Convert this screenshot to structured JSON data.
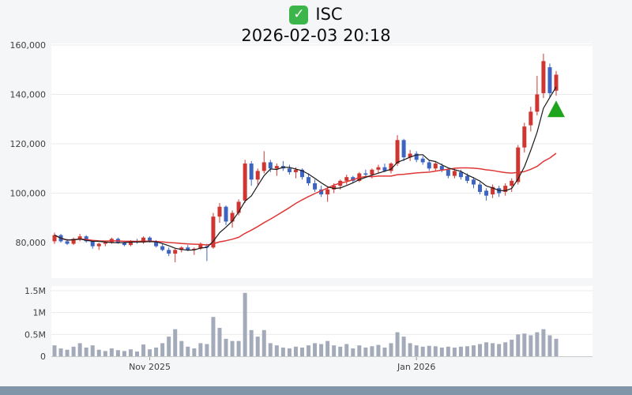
{
  "header": {
    "check_glyph": "✓",
    "symbol": "ISC",
    "datetime": "2026-02-03 20:18"
  },
  "colors": {
    "page_bg": "#f5f6f7",
    "panel_bg": "#ffffff",
    "grid": "#ebebeb",
    "axis_text": "#3f3f3f",
    "up_candle": "#cf3631",
    "down_candle": "#3d64c1",
    "volume_bar": "#a3aaba",
    "ma_short": "#1a1a1a",
    "ma_long": "#e03636",
    "marker_green": "#1da61d",
    "check_icon_bg": "#3cb54a",
    "bottom_strip": "#8095a8"
  },
  "chart_data": {
    "type": "candlestick",
    "title": "ISC",
    "subtitle": "2026-02-03 20:18",
    "legend_position": "none",
    "grid": true,
    "price_axis": {
      "ticks": [
        80000,
        100000,
        120000,
        140000,
        160000
      ],
      "tick_labels": [
        "80,000",
        "100,000",
        "120,000",
        "140,000",
        "160,000"
      ],
      "range": [
        66000,
        160640
      ]
    },
    "volume_axis": {
      "ticks": [
        0,
        500000,
        1000000,
        1500000
      ],
      "tick_labels": [
        "0",
        "0.5M",
        "1M",
        "1.5M"
      ],
      "range": [
        0,
        1500000
      ]
    },
    "x_axis": {
      "labels": [
        {
          "date": "2025-11-03",
          "label": "Nov 2025"
        },
        {
          "date": "2026-01-02",
          "label": "Jan 2026"
        }
      ]
    },
    "overlays": {
      "ma_short_window": 5,
      "ma_long_window": 20
    },
    "marker": {
      "shape": "triangle-up",
      "color": "#1da61d",
      "date": "2026-02-03",
      "price": 134000
    },
    "columns": [
      "date",
      "open",
      "high",
      "low",
      "close",
      "volume"
    ],
    "candles": [
      [
        "2025-10-13",
        80500,
        84000,
        79500,
        83000,
        250000
      ],
      [
        "2025-10-14",
        83000,
        83500,
        80000,
        80500,
        180000
      ],
      [
        "2025-10-15",
        80500,
        81500,
        79000,
        79500,
        150000
      ],
      [
        "2025-10-16",
        79500,
        82000,
        79000,
        81500,
        220000
      ],
      [
        "2025-10-17",
        81500,
        83500,
        80500,
        82500,
        300000
      ],
      [
        "2025-10-20",
        82500,
        83000,
        80000,
        80500,
        200000
      ],
      [
        "2025-10-21",
        80500,
        81000,
        77500,
        78500,
        250000
      ],
      [
        "2025-10-22",
        78500,
        80000,
        77000,
        79500,
        150000
      ],
      [
        "2025-10-23",
        79500,
        80500,
        78500,
        80000,
        120000
      ],
      [
        "2025-10-24",
        80000,
        82000,
        79500,
        81500,
        180000
      ],
      [
        "2025-10-27",
        81500,
        82000,
        79500,
        80000,
        140000
      ],
      [
        "2025-10-28",
        80000,
        80500,
        78500,
        79000,
        120000
      ],
      [
        "2025-10-29",
        79000,
        81000,
        78500,
        80500,
        160000
      ],
      [
        "2025-10-30",
        80500,
        81500,
        79500,
        80000,
        110000
      ],
      [
        "2025-10-31",
        80000,
        82500,
        79500,
        82000,
        270000
      ],
      [
        "2025-11-03",
        82000,
        82500,
        80000,
        80500,
        160000
      ],
      [
        "2025-11-04",
        80500,
        81000,
        78000,
        78500,
        200000
      ],
      [
        "2025-11-05",
        78500,
        79500,
        76500,
        77000,
        300000
      ],
      [
        "2025-11-06",
        77000,
        78000,
        74500,
        75500,
        450000
      ],
      [
        "2025-11-07",
        75500,
        77500,
        72000,
        77000,
        620000
      ],
      [
        "2025-11-10",
        77000,
        78500,
        76000,
        78000,
        350000
      ],
      [
        "2025-11-11",
        78000,
        79000,
        76500,
        77000,
        220000
      ],
      [
        "2025-11-12",
        77000,
        78000,
        75000,
        77500,
        180000
      ],
      [
        "2025-11-13",
        77500,
        80000,
        77000,
        79500,
        300000
      ],
      [
        "2025-11-14",
        78500,
        79500,
        72500,
        78000,
        280000
      ],
      [
        "2025-11-17",
        78000,
        92000,
        77500,
        90500,
        900000
      ],
      [
        "2025-11-18",
        90500,
        96000,
        88000,
        94500,
        650000
      ],
      [
        "2025-11-19",
        94500,
        95000,
        87000,
        88500,
        400000
      ],
      [
        "2025-11-20",
        88500,
        93000,
        86000,
        92000,
        350000
      ],
      [
        "2025-11-21",
        92000,
        97500,
        91000,
        96500,
        350000
      ],
      [
        "2025-11-24",
        97000,
        113500,
        96000,
        112000,
        1450000
      ],
      [
        "2025-11-25",
        112000,
        113000,
        103000,
        105500,
        600000
      ],
      [
        "2025-11-26",
        105500,
        110000,
        103500,
        109000,
        450000
      ],
      [
        "2025-11-27",
        109000,
        117000,
        108000,
        112500,
        600000
      ],
      [
        "2025-11-28",
        112500,
        113500,
        108500,
        110000,
        300000
      ],
      [
        "2025-12-01",
        110000,
        112000,
        107000,
        111000,
        250000
      ],
      [
        "2025-12-02",
        111000,
        113000,
        109000,
        110000,
        200000
      ],
      [
        "2025-12-03",
        110000,
        111500,
        107500,
        108500,
        180000
      ],
      [
        "2025-12-04",
        108500,
        110500,
        106000,
        109500,
        220000
      ],
      [
        "2025-12-05",
        109500,
        110000,
        105500,
        106500,
        200000
      ],
      [
        "2025-12-08",
        106500,
        108000,
        103000,
        104000,
        250000
      ],
      [
        "2025-12-09",
        104000,
        105500,
        100500,
        101500,
        300000
      ],
      [
        "2025-12-10",
        101500,
        103000,
        98500,
        99500,
        280000
      ],
      [
        "2025-12-11",
        99500,
        102500,
        96500,
        101500,
        350000
      ],
      [
        "2025-12-12",
        101500,
        104000,
        100000,
        103000,
        250000
      ],
      [
        "2025-12-15",
        103000,
        105500,
        101500,
        105000,
        220000
      ],
      [
        "2025-12-16",
        105000,
        107500,
        103500,
        106500,
        280000
      ],
      [
        "2025-12-17",
        106500,
        107000,
        104000,
        105000,
        180000
      ],
      [
        "2025-12-18",
        105000,
        108500,
        104500,
        108000,
        250000
      ],
      [
        "2025-12-19",
        108000,
        109500,
        106500,
        107500,
        200000
      ],
      [
        "2025-12-22",
        107500,
        110000,
        106000,
        109500,
        230000
      ],
      [
        "2025-12-23",
        109500,
        111500,
        108000,
        110500,
        260000
      ],
      [
        "2025-12-24",
        110500,
        112000,
        108500,
        109000,
        200000
      ],
      [
        "2025-12-26",
        109000,
        112500,
        108000,
        112000,
        300000
      ],
      [
        "2025-12-29",
        112000,
        123500,
        111000,
        121500,
        550000
      ],
      [
        "2025-12-30",
        121500,
        122000,
        113000,
        114500,
        450000
      ],
      [
        "2025-12-31",
        114500,
        117500,
        113000,
        116000,
        300000
      ],
      [
        "2026-01-02",
        116000,
        117000,
        112500,
        113500,
        250000
      ],
      [
        "2026-01-05",
        114000,
        115000,
        111500,
        112500,
        220000
      ],
      [
        "2026-01-06",
        112500,
        113500,
        109000,
        110000,
        240000
      ],
      [
        "2026-01-07",
        110000,
        113000,
        109000,
        112000,
        230000
      ],
      [
        "2026-01-08",
        111000,
        112000,
        108500,
        109500,
        200000
      ],
      [
        "2026-01-09",
        109500,
        110000,
        106000,
        107000,
        220000
      ],
      [
        "2026-01-12",
        107000,
        110000,
        106000,
        109000,
        200000
      ],
      [
        "2026-01-13",
        108500,
        109500,
        105500,
        106500,
        220000
      ],
      [
        "2026-01-14",
        107000,
        108000,
        104000,
        105000,
        230000
      ],
      [
        "2026-01-15",
        105500,
        106500,
        102000,
        103500,
        250000
      ],
      [
        "2026-01-16",
        103500,
        104500,
        99500,
        100500,
        280000
      ],
      [
        "2026-01-19",
        101000,
        102000,
        97000,
        99000,
        320000
      ],
      [
        "2026-01-20",
        99500,
        103500,
        98000,
        102500,
        300000
      ],
      [
        "2026-01-21",
        102000,
        103000,
        98500,
        100000,
        280000
      ],
      [
        "2026-01-22",
        100500,
        104000,
        99000,
        103000,
        320000
      ],
      [
        "2026-01-23",
        103000,
        106000,
        100500,
        105000,
        380000
      ],
      [
        "2026-01-26",
        104500,
        119500,
        103500,
        118500,
        500000
      ],
      [
        "2026-01-27",
        118500,
        128500,
        116500,
        127000,
        520000
      ],
      [
        "2026-01-28",
        127500,
        135000,
        125000,
        133000,
        480000
      ],
      [
        "2026-01-29",
        133000,
        147500,
        131500,
        140000,
        550000
      ],
      [
        "2026-01-30",
        140500,
        156500,
        138500,
        153500,
        620000
      ],
      [
        "2026-02-02",
        151000,
        152500,
        138500,
        140500,
        480000
      ],
      [
        "2026-02-03",
        141500,
        149500,
        139500,
        148000,
        400000
      ]
    ]
  }
}
